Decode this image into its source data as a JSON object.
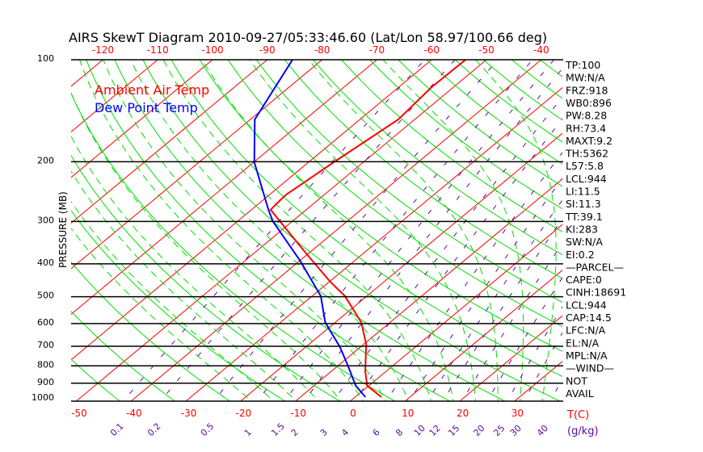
{
  "chart_data": {
    "type": "line",
    "subtype": "skew-t log-p",
    "title": "AIRS SkewT Diagram 2010-09-27/05:33:46.60 (Lat/Lon 58.97/100.66 deg)",
    "ylabel": "PRESSURE (MB)",
    "xlabel": "T(C)",
    "y_ticks": [
      "100",
      "200",
      "300",
      "400",
      "500",
      "600",
      "700",
      "800",
      "900",
      "1000"
    ],
    "y_tick_values": [
      100,
      200,
      300,
      400,
      500,
      600,
      700,
      800,
      900,
      1000
    ],
    "x_ticks_top": [
      "-120",
      "-110",
      "-100",
      "-90",
      "-80",
      "-70",
      "-60",
      "-50",
      "-40"
    ],
    "x_ticks_top_values": [
      -120,
      -110,
      -100,
      -90,
      -80,
      -70,
      -60,
      -50,
      -40
    ],
    "x_ticks_bottom": [
      "-50",
      "-40",
      "-30",
      "-20",
      "-10",
      "0",
      "10",
      "20",
      "30"
    ],
    "x_ticks_bottom_values": [
      -50,
      -40,
      -30,
      -20,
      -10,
      0,
      10,
      20,
      30
    ],
    "mixing_ratio_labels": [
      "0.1",
      "0.2",
      "0.5",
      "1",
      "1.5",
      "2",
      "3",
      "4",
      "6",
      "8",
      "10",
      "12",
      "15",
      "20",
      "25",
      "30",
      "40"
    ],
    "mixing_ratio_values": [
      0.1,
      0.2,
      0.5,
      1,
      1.5,
      2,
      3,
      4,
      6,
      8,
      10,
      12,
      15,
      20,
      25,
      30,
      40
    ],
    "mixing_ratio_unit": "(g/kg)",
    "ylim": [
      100,
      1000
    ],
    "legend": [
      {
        "name": "Ambient Air Temp",
        "color": "#ff0000"
      },
      {
        "name": "Dew Point Temp",
        "color": "#0000ff"
      }
    ],
    "legend_placement": "top-left",
    "series": [
      {
        "name": "Ambient Air Temp",
        "color": "#ff0000",
        "pressure": [
          100,
          120.5,
          150,
          200.6,
          251,
          277,
          304,
          375,
          452,
          498,
          596,
          692,
          830,
          915,
          989
        ],
        "values": [
          -53.8,
          -54,
          -53,
          -55.4,
          -57,
          -56.5,
          -51.5,
          -40.1,
          -29.8,
          -24,
          -15.2,
          -9.5,
          -3.8,
          -0.3,
          4.8
        ]
      },
      {
        "name": "Dew Point Temp",
        "color": "#0000ff",
        "pressure": [
          100,
          150,
          200.6,
          277,
          300,
          392,
          498,
          596,
          703,
          797,
          915,
          989
        ],
        "values": [
          -85.4,
          -79.2,
          -69.9,
          -56.9,
          -53.5,
          -39.9,
          -28.4,
          -21.8,
          -13.8,
          -8.3,
          -2.4,
          1.9
        ]
      }
    ],
    "colors": {
      "isotherm": "#ff0000",
      "dry_adiabat": "#00e000",
      "moist_adiabat": "#00e000",
      "mixing_ratio": "#5a0aa0",
      "isobar": "#000000"
    }
  },
  "indices": [
    "TP:100",
    "MW:N/A",
    "FRZ:918",
    "WB0:896",
    "PW:8.28",
    "RH:73.4",
    "MAXT:9.2",
    "TH:5362",
    "L57:5.8",
    "LCL:944",
    "LI:11.5",
    "SI:11.3",
    "TT:39.1",
    "KI:283",
    "SW:N/A",
    "EI:0.2",
    "—PARCEL—",
    "CAPE:0",
    "CINH:18691",
    "LCL:944",
    "CAP:14.5",
    "LFC:N/A",
    "EL:N/A",
    "MPL:N/A",
    "—WIND—",
    "NOT",
    "AVAIL"
  ]
}
